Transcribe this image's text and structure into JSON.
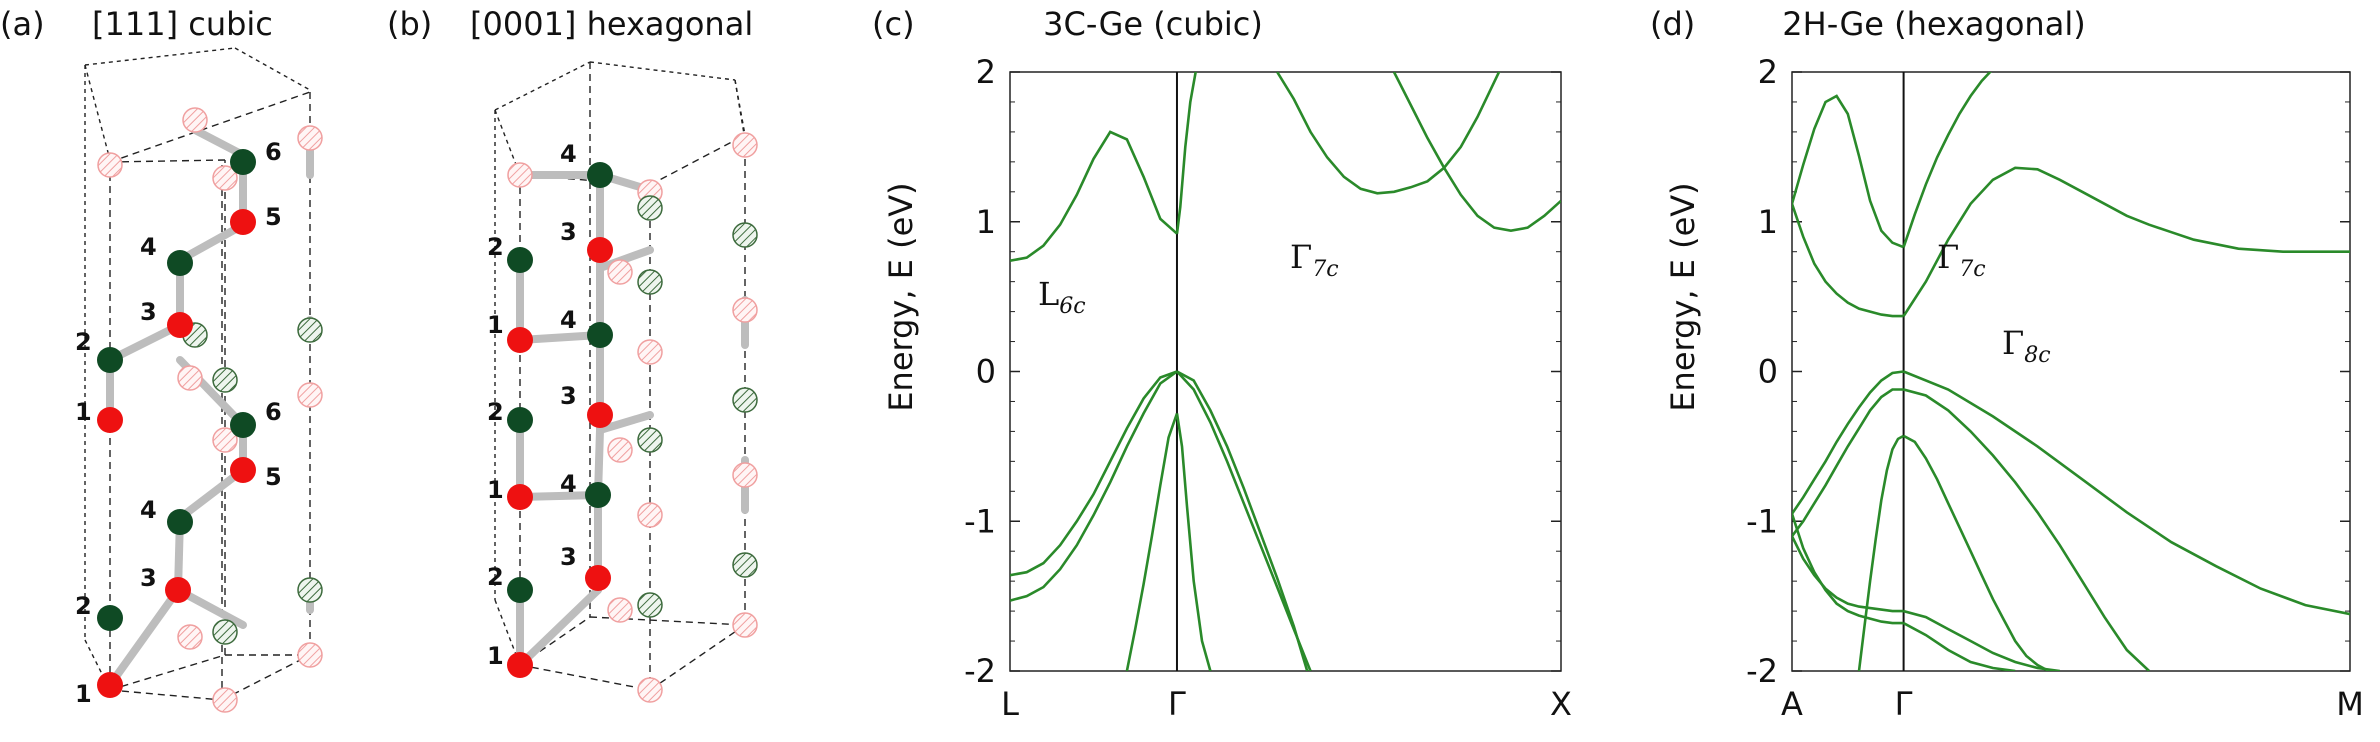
{
  "panel_a": {
    "letter": "(a)",
    "title": "[111] cubic",
    "labels": [
      "1",
      "2",
      "3",
      "4",
      "5",
      "6",
      "1",
      "2",
      "3",
      "4",
      "5",
      "6"
    ]
  },
  "panel_b": {
    "letter": "(b)",
    "title": "[0001] hexagonal",
    "labels": [
      "1",
      "2",
      "3",
      "4",
      "1",
      "2",
      "3",
      "4",
      "1",
      "2",
      "3",
      "4"
    ]
  },
  "colors": {
    "bond": "#bdbdbd",
    "ge_red": "#ee1111",
    "ge_green": "#0f4a24",
    "ghost_red": "#f0a0a0",
    "ghost_green": "#3d6b3d",
    "band": "#2a8a2a"
  },
  "chart_data": [
    {
      "type": "line",
      "panel": "(c)",
      "title": "3C-Ge (cubic)",
      "ylabel": "Energy, E (eV)",
      "ylim": [
        -2,
        2
      ],
      "yticks": [
        "2",
        "1",
        "0",
        "-1",
        "-2"
      ],
      "xticks": [
        "L",
        "Γ",
        "X"
      ],
      "annotations": [
        {
          "text": "L6c"
        },
        {
          "text": "Γ7c"
        }
      ],
      "series": [
        {
          "x": [
            0,
            0.1,
            0.2,
            0.3,
            0.4,
            0.5,
            0.6,
            0.7,
            0.8,
            0.9,
            1.0
          ],
          "values": [
            0.74,
            0.76,
            0.84,
            0.98,
            1.18,
            1.42,
            1.6,
            1.55,
            1.3,
            1.02,
            0.92
          ]
        },
        {
          "x": [
            1.0,
            1.02,
            1.05,
            1.08,
            1.12,
            1.16
          ],
          "values": [
            0.92,
            1.1,
            1.5,
            1.8,
            2.05,
            2.2
          ]
        },
        {
          "x": [
            1.6,
            1.7,
            1.8,
            1.9,
            2.0,
            2.1,
            2.2,
            2.3,
            2.4,
            2.5,
            2.6,
            2.7,
            2.8,
            2.95
          ],
          "values": [
            2.0,
            1.82,
            1.6,
            1.43,
            1.3,
            1.22,
            1.19,
            1.2,
            1.23,
            1.27,
            1.36,
            1.5,
            1.7,
            2.05
          ]
        },
        {
          "x": [
            2.3,
            2.4,
            2.5,
            2.6,
            2.7,
            2.8,
            2.9,
            3.0,
            3.1,
            3.2,
            3.3
          ],
          "values": [
            2.0,
            1.78,
            1.56,
            1.36,
            1.18,
            1.04,
            0.96,
            0.94,
            0.96,
            1.04,
            1.14
          ]
        },
        {
          "x": [
            0,
            0.1,
            0.2,
            0.3,
            0.4,
            0.5,
            0.6,
            0.7,
            0.8,
            0.9,
            1.0
          ],
          "values": [
            -1.36,
            -1.34,
            -1.28,
            -1.16,
            -1.0,
            -0.82,
            -0.6,
            -0.38,
            -0.18,
            -0.04,
            0.0
          ]
        },
        {
          "x": [
            0,
            0.1,
            0.2,
            0.3,
            0.4,
            0.5,
            0.6,
            0.7,
            0.8,
            0.9,
            1.0
          ],
          "values": [
            -1.53,
            -1.5,
            -1.44,
            -1.32,
            -1.16,
            -0.96,
            -0.74,
            -0.5,
            -0.28,
            -0.08,
            0.0
          ]
        },
        {
          "x": [
            0.7,
            0.75,
            0.8,
            0.85,
            0.9,
            0.95,
            1.0
          ],
          "values": [
            -2.0,
            -1.72,
            -1.42,
            -1.1,
            -0.76,
            -0.44,
            -0.28
          ]
        },
        {
          "x": [
            1.0,
            1.1,
            1.2,
            1.3,
            1.4,
            1.5,
            1.6,
            1.7,
            1.8
          ],
          "values": [
            0.0,
            -0.12,
            -0.34,
            -0.6,
            -0.88,
            -1.16,
            -1.44,
            -1.72,
            -2.0
          ]
        },
        {
          "x": [
            1.0,
            1.1,
            1.2,
            1.3,
            1.4,
            1.5,
            1.6,
            1.7,
            1.78
          ],
          "values": [
            0.0,
            -0.06,
            -0.26,
            -0.5,
            -0.78,
            -1.08,
            -1.38,
            -1.7,
            -2.0
          ]
        },
        {
          "x": [
            1.0,
            1.03,
            1.06,
            1.1,
            1.15,
            1.2
          ],
          "values": [
            -0.28,
            -0.5,
            -0.9,
            -1.4,
            -1.8,
            -2.0
          ]
        }
      ]
    },
    {
      "type": "line",
      "panel": "(d)",
      "title": "2H-Ge (hexagonal)",
      "ylabel": "Energy, E (eV)",
      "ylim": [
        -2,
        2
      ],
      "yticks": [
        "2",
        "1",
        "0",
        "-1",
        "-2"
      ],
      "xticks": [
        "A",
        "Γ",
        "M"
      ],
      "annotations": [
        {
          "text": "Γ7c"
        },
        {
          "text": "Γ8c"
        }
      ],
      "series": [
        {
          "x": [
            0,
            0.1,
            0.2,
            0.3,
            0.4,
            0.5,
            0.6,
            0.7,
            0.8,
            0.9,
            1.0
          ],
          "values": [
            1.12,
            1.38,
            1.62,
            1.8,
            1.84,
            1.72,
            1.44,
            1.14,
            0.94,
            0.86,
            0.83
          ]
        },
        {
          "x": [
            0,
            0.1,
            0.2,
            0.3,
            0.4,
            0.5,
            0.6,
            0.7,
            0.8,
            0.9,
            1.0
          ],
          "values": [
            1.12,
            0.9,
            0.72,
            0.6,
            0.52,
            0.46,
            0.42,
            0.4,
            0.38,
            0.37,
            0.37
          ]
        },
        {
          "x": [
            1.0,
            1.1,
            1.2,
            1.3,
            1.4,
            1.5,
            1.6,
            1.7,
            1.8,
            1.9
          ],
          "values": [
            0.83,
            1.05,
            1.25,
            1.43,
            1.58,
            1.72,
            1.84,
            1.94,
            2.02,
            2.08
          ]
        },
        {
          "x": [
            1.0,
            1.2,
            1.4,
            1.6,
            1.8,
            2.0,
            2.2,
            2.4,
            2.6,
            2.8,
            3.0,
            3.2,
            3.4,
            3.6,
            3.8,
            4.0,
            4.2,
            4.4,
            4.6,
            4.8,
            5.0
          ],
          "values": [
            0.37,
            0.6,
            0.88,
            1.12,
            1.28,
            1.36,
            1.35,
            1.28,
            1.2,
            1.12,
            1.04,
            0.98,
            0.93,
            0.88,
            0.85,
            0.82,
            0.81,
            0.8,
            0.8,
            0.8,
            0.8
          ]
        },
        {
          "x": [
            0,
            0.1,
            0.2,
            0.3,
            0.4,
            0.5,
            0.6,
            0.7,
            0.8,
            0.9,
            1.0
          ],
          "values": [
            -0.95,
            -0.84,
            -0.72,
            -0.6,
            -0.47,
            -0.35,
            -0.24,
            -0.14,
            -0.06,
            -0.01,
            0.0
          ]
        },
        {
          "x": [
            0,
            0.1,
            0.2,
            0.3,
            0.4,
            0.5,
            0.6,
            0.7,
            0.8,
            0.9,
            1.0
          ],
          "values": [
            -1.1,
            -1.0,
            -0.88,
            -0.76,
            -0.63,
            -0.5,
            -0.38,
            -0.26,
            -0.17,
            -0.12,
            -0.12
          ]
        },
        {
          "x": [
            0,
            0.1,
            0.2,
            0.3,
            0.4,
            0.5,
            0.6,
            0.7,
            0.8,
            0.9,
            1.0
          ],
          "values": [
            -1.1,
            -1.25,
            -1.36,
            -1.45,
            -1.51,
            -1.55,
            -1.57,
            -1.58,
            -1.59,
            -1.6,
            -1.6
          ]
        },
        {
          "x": [
            0,
            0.1,
            0.2,
            0.3,
            0.4,
            0.5,
            0.6,
            0.7,
            0.8,
            0.9,
            1.0
          ],
          "values": [
            -0.95,
            -1.18,
            -1.34,
            -1.46,
            -1.55,
            -1.6,
            -1.63,
            -1.65,
            -1.67,
            -1.68,
            -1.68
          ]
        },
        {
          "x": [
            0.6,
            0.65,
            0.7,
            0.75,
            0.8,
            0.85,
            0.9,
            0.95,
            1.0
          ],
          "values": [
            -2.0,
            -1.7,
            -1.4,
            -1.12,
            -0.86,
            -0.66,
            -0.52,
            -0.45,
            -0.43
          ]
        },
        {
          "x": [
            1.0,
            1.4,
            1.8,
            2.2,
            2.6,
            3.0,
            3.4,
            3.8,
            4.2,
            4.6,
            5.0
          ],
          "values": [
            0.0,
            -0.12,
            -0.3,
            -0.5,
            -0.72,
            -0.94,
            -1.14,
            -1.3,
            -1.45,
            -1.56,
            -1.62
          ]
        },
        {
          "x": [
            1.0,
            1.2,
            1.4,
            1.6,
            1.8,
            2.0,
            2.2,
            2.4,
            2.6,
            2.8,
            3.0,
            3.2
          ],
          "values": [
            -0.12,
            -0.16,
            -0.26,
            -0.4,
            -0.56,
            -0.74,
            -0.94,
            -1.16,
            -1.4,
            -1.64,
            -1.86,
            -2.0
          ]
        },
        {
          "x": [
            1.0,
            1.1,
            1.2,
            1.3,
            1.4,
            1.5,
            1.6,
            1.7,
            1.8,
            1.9,
            2.0,
            2.1,
            2.2,
            2.3
          ],
          "values": [
            -0.43,
            -0.47,
            -0.58,
            -0.72,
            -0.88,
            -1.04,
            -1.2,
            -1.36,
            -1.52,
            -1.66,
            -1.8,
            -1.9,
            -1.96,
            -2.0
          ]
        },
        {
          "x": [
            1.0,
            1.2,
            1.4,
            1.6,
            1.8,
            2.0,
            2.2,
            2.4
          ],
          "values": [
            -1.6,
            -1.64,
            -1.72,
            -1.8,
            -1.88,
            -1.94,
            -1.98,
            -2.0
          ]
        },
        {
          "x": [
            1.0,
            1.2,
            1.4,
            1.6,
            1.8,
            2.0
          ],
          "values": [
            -1.68,
            -1.76,
            -1.86,
            -1.94,
            -1.98,
            -2.0
          ]
        }
      ]
    }
  ]
}
